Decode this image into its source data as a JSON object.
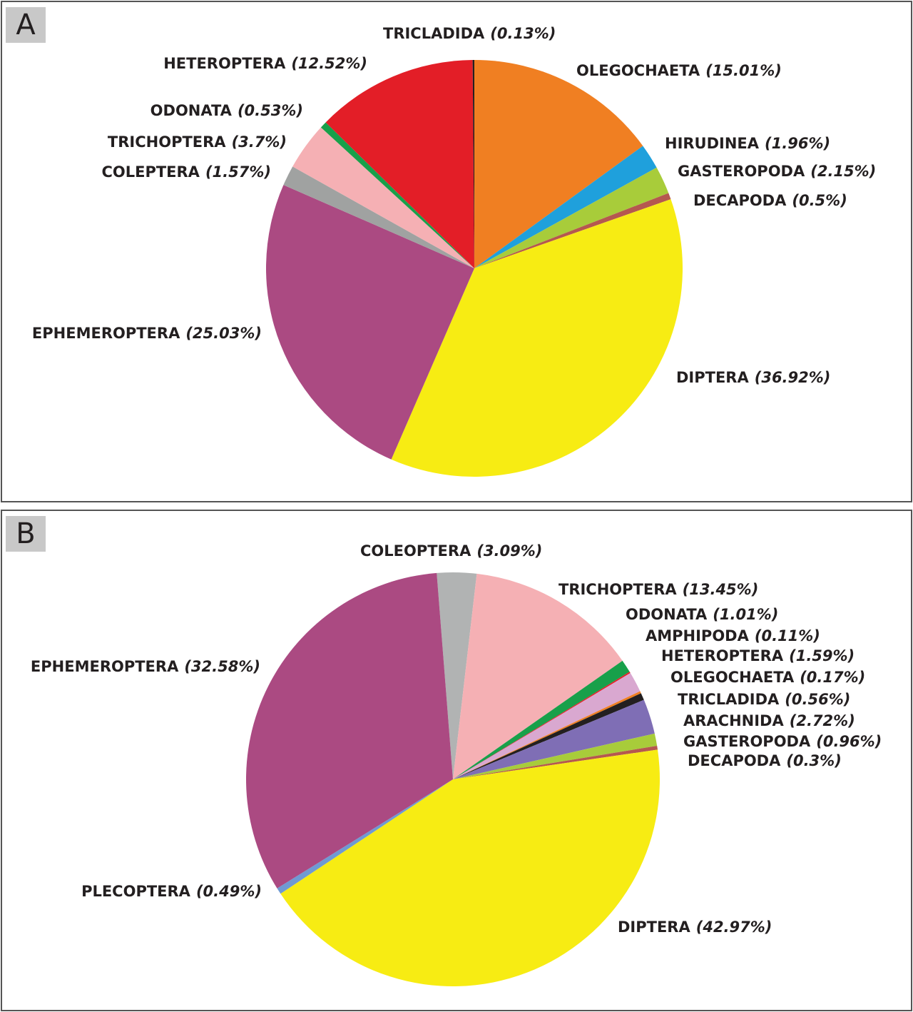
{
  "chart_data": [
    {
      "type": "pie",
      "title": "A",
      "categories": [
        "OLEGOCHAETA",
        "HIRUDINEA",
        "GASTEROPODA",
        "DECAPODA",
        "DIPTERA",
        "EPHEMEROPTERA",
        "COLEPTERA",
        "TRICHOPTERA",
        "ODONATA",
        "HETEROPTERA",
        "TRICLADIDA"
      ],
      "values": [
        15.01,
        1.96,
        2.15,
        0.5,
        36.92,
        25.03,
        1.57,
        3.7,
        0.53,
        12.52,
        0.13
      ],
      "value_labels": [
        "(15.01%)",
        "(1.96%)",
        "(2.15%)",
        "(0.5%)",
        "(36.92%)",
        "(25.03%)",
        "(1.57%)",
        "(3.7%)",
        "(0.53%)",
        "(12.52%)",
        "(0.13%)"
      ],
      "colors": [
        "#f07f22",
        "#1fa0dc",
        "#a8cc3a",
        "#b5584f",
        "#f7ec13",
        "#ab4a82",
        "#a0a2a1",
        "#f5b0b4",
        "#18a04a",
        "#e31e27",
        "#231f20"
      ]
    },
    {
      "type": "pie",
      "title": "B",
      "categories": [
        "COLEOPTERA",
        "TRICHOPTERA",
        "ODONATA",
        "AMPHIPODA",
        "HETEROPTERA",
        "OLEGOCHAETA",
        "TRICLADIDA",
        "ARACHNIDA",
        "GASTEROPODA",
        "DECAPODA",
        "DIPTERA",
        "PLECOPTERA",
        "EPHEMEROPTERA"
      ],
      "values": [
        3.09,
        13.45,
        1.01,
        0.11,
        1.59,
        0.17,
        0.56,
        2.72,
        0.96,
        0.3,
        42.97,
        0.49,
        32.58
      ],
      "value_labels": [
        "(3.09%)",
        "(13.45%)",
        "(1.01%)",
        "(0.11%)",
        "(1.59%)",
        "(0.17%)",
        "(0.56%)",
        "(2.72%)",
        "(0.96%)",
        "(0.3%)",
        "(42.97%)",
        "(0.49%)",
        "(32.58%)"
      ],
      "colors": [
        "#b1b3b3",
        "#f5b0b4",
        "#18a04a",
        "#e31e27",
        "#d9a8d0",
        "#f07f22",
        "#231f20",
        "#7f6eb5",
        "#a8cc3a",
        "#b5584f",
        "#f7ec13",
        "#6f9ad3",
        "#ab4a82"
      ]
    }
  ]
}
